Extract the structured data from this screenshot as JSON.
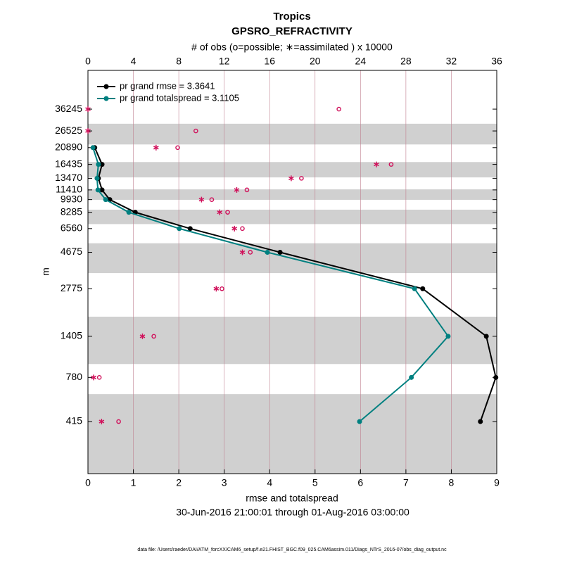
{
  "chart_data": {
    "type": "profile",
    "title": "Tropics",
    "subtitle": "GPSRO_REFRACTIVITY",
    "x2label": "# of obs (o=possible; ∗=assimilated ) x 10000",
    "xlabel": "rmse and totalspread",
    "ylabel": "m",
    "date_range": "30-Jun-2016 21:00:01 through 01-Aug-2016 03:00:00",
    "footer": "data file: /Users/raeder/DAI/ATM_forcXX/CAM6_setup/f.e21.FHIST_BGC.f09_025.CAM6assim.011/Diags_NTrS_2016-07/obs_diag_output.nc",
    "ylog": true,
    "ylim": [
      197,
      63100
    ],
    "yticks": [
      36245,
      26525,
      20890,
      16435,
      13470,
      11410,
      9930,
      8285,
      6560,
      4675,
      2775,
      1405,
      780,
      415
    ],
    "levels": [
      36245,
      26525,
      20890,
      16435,
      13470,
      11410,
      9930,
      8285,
      6560,
      4675,
      2775,
      1405,
      780,
      415
    ],
    "shaded_layers": [
      [
        21860,
        29400
      ],
      [
        13650,
        17000
      ],
      [
        9900,
        11500
      ],
      [
        7000,
        8600
      ],
      [
        3470,
        5320
      ],
      [
        945,
        1860
      ],
      [
        197,
        614
      ]
    ],
    "xlim": [
      0,
      9
    ],
    "xticks": [
      0,
      1,
      2,
      3,
      4,
      5,
      6,
      7,
      8,
      9
    ],
    "x2lim": [
      0,
      36
    ],
    "x2ticks": [
      0,
      4,
      8,
      12,
      16,
      20,
      24,
      28,
      32,
      36
    ],
    "x2_color": "#d0105a",
    "series": [
      {
        "name": "pr grand rmse = 3.3641",
        "color": "#000000",
        "values": [
          null,
          null,
          0.15,
          0.31,
          0.23,
          0.31,
          0.48,
          1.04,
          2.25,
          4.23,
          7.37,
          8.77,
          8.98,
          8.64
        ]
      },
      {
        "name": "pr grand totalspread = 3.1105",
        "color": "#008080",
        "values": [
          null,
          null,
          0.11,
          0.23,
          0.2,
          0.22,
          0.39,
          0.9,
          2.01,
          3.95,
          7.19,
          7.93,
          7.12,
          5.98
        ]
      }
    ],
    "obs_possible": [
      22.1,
      9.5,
      7.9,
      26.7,
      18.8,
      14.0,
      10.9,
      12.3,
      13.6,
      14.3,
      11.8,
      5.8,
      1.0,
      2.7
    ],
    "obs_assimilated": [
      0,
      0,
      6.0,
      25.4,
      17.9,
      13.1,
      10.0,
      11.6,
      12.9,
      13.6,
      11.3,
      4.8,
      0.5,
      1.2
    ]
  }
}
